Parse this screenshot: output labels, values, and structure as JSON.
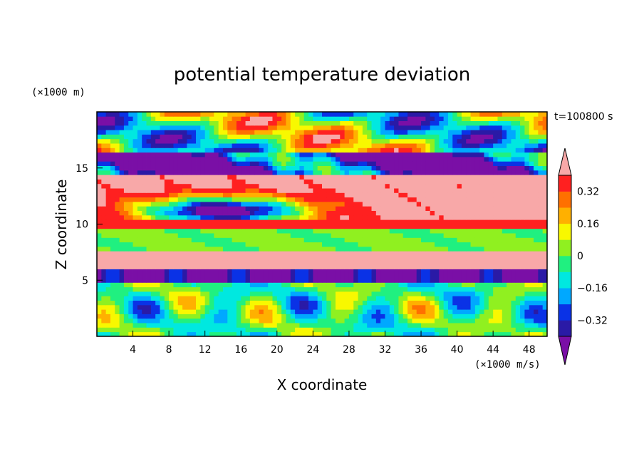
{
  "chart_data": {
    "type": "heatmap",
    "title": "potential temperature deviation",
    "xlabel": "X coordinate",
    "ylabel": "Z coordinate",
    "x_unit": "(×1000 m/s)",
    "y_unit": "(×1000 m)",
    "time_label": "t=100800 s",
    "xlim": [
      0,
      50
    ],
    "ylim": [
      0,
      20
    ],
    "x_ticks": [
      "4",
      "8",
      "12",
      "16",
      "20",
      "24",
      "28",
      "32",
      "36",
      "40",
      "44",
      "48"
    ],
    "x_tick_values": [
      4,
      8,
      12,
      16,
      20,
      24,
      28,
      32,
      36,
      40,
      44,
      48
    ],
    "y_ticks": [
      "5",
      "10",
      "15"
    ],
    "y_tick_values": [
      5,
      10,
      15
    ],
    "colorbar": {
      "levels": [
        -0.4,
        -0.32,
        -0.24,
        -0.16,
        -0.08,
        0,
        0.08,
        0.16,
        0.24,
        0.32,
        0.4
      ],
      "tick_labels": [
        "0.32",
        "0.16",
        "0",
        "−0.16",
        "−0.32"
      ],
      "tick_values": [
        0.32,
        0.16,
        0,
        -0.16,
        -0.32
      ],
      "colors": [
        "#7a0fa6",
        "#2a1aa6",
        "#0a32e6",
        "#00a8ff",
        "#00e8e0",
        "#20f080",
        "#90f020",
        "#f8f800",
        "#ffb000",
        "#ff7000",
        "#ff2020",
        "#f8a8a8"
      ],
      "extend": "both"
    }
  }
}
